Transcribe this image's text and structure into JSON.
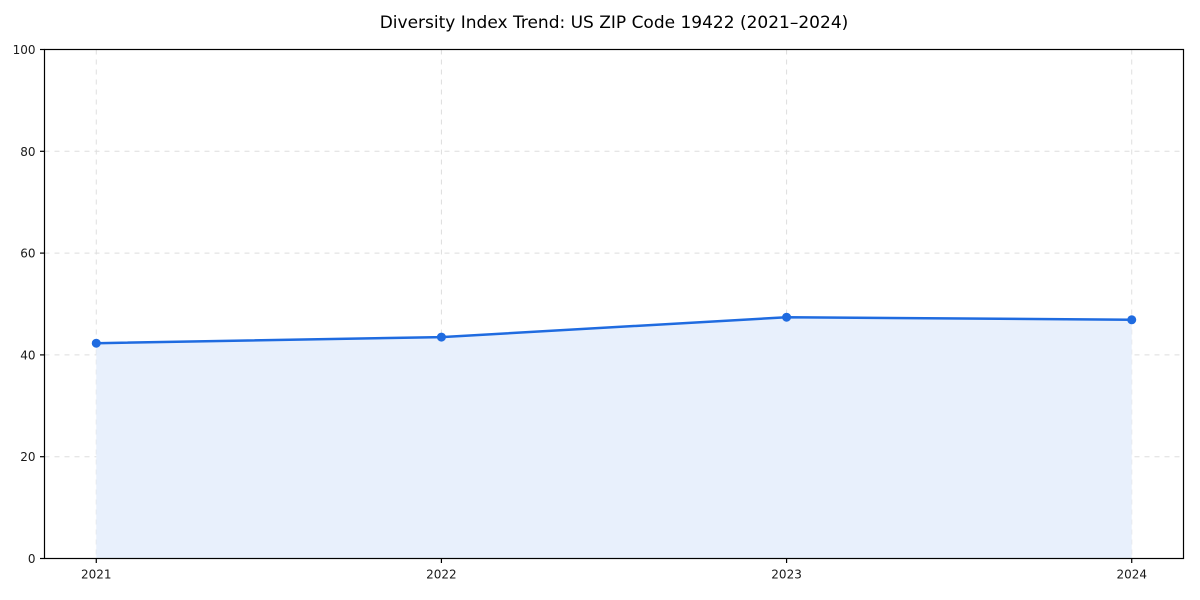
{
  "page": {
    "background_color": "#ffffff"
  },
  "chart_data": {
    "type": "area",
    "title": "Diversity Index Trend: US ZIP Code 19422 (2021–2024)",
    "x": [
      2021,
      2022,
      2023,
      2024
    ],
    "series": [
      {
        "name": "Diversity Index",
        "values": [
          42.3,
          43.5,
          47.4,
          46.9
        ]
      }
    ],
    "xlabel": "",
    "ylabel": "",
    "ylim": [
      0,
      100
    ],
    "yticks": [
      0,
      20,
      40,
      60,
      80,
      100
    ],
    "grid": "dashed horizontal and vertical at ticks",
    "legend": "none",
    "marker": "circle",
    "line_color": "#1f6be0",
    "fill_color": "#e8f0fc",
    "grid_color": "#dedede",
    "axis_color": "#000000",
    "tick_label_color": "#1a1a1a"
  }
}
